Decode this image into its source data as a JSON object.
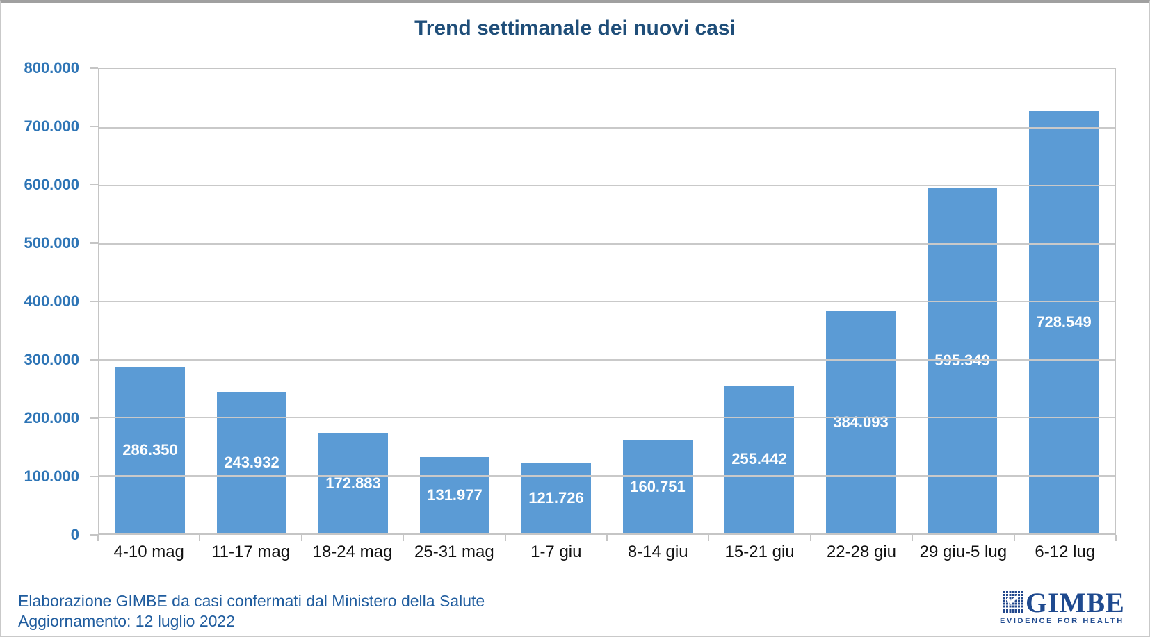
{
  "title": "Trend settimanale dei nuovi casi",
  "footer": {
    "line1": "Elaborazione GIMBE da casi confermati dal Ministero della Salute",
    "line2": "Aggiornamento: 12 luglio 2022"
  },
  "logo": {
    "name": "GIMBE",
    "tagline": "EVIDENCE FOR HEALTH",
    "color": "#1F4A8F"
  },
  "colors": {
    "bar": "#5B9BD5",
    "bar_label": "#FFFFFF",
    "title": "#1F4E79",
    "y_axis_label": "#2E75B6",
    "x_axis_label": "#111111",
    "gridline": "#C9C9C9",
    "plot_border": "#C5C5C5",
    "footer_text": "#1F5C9E"
  },
  "chart_data": {
    "type": "bar",
    "title": "Trend settimanale dei nuovi casi",
    "categories": [
      "4-10 mag",
      "11-17 mag",
      "18-24 mag",
      "25-31 mag",
      "1-7 giu",
      "8-14 giu",
      "15-21 giu",
      "22-28 giu",
      "29 giu-5 lug",
      "6-12 lug"
    ],
    "values": [
      286350,
      243932,
      172883,
      131977,
      121726,
      160751,
      255442,
      384093,
      595349,
      728549
    ],
    "bar_labels": [
      "286.350",
      "243.932",
      "172.883",
      "131.977",
      "121.726",
      "160.751",
      "255.442",
      "384.093",
      "595.349",
      "728.549"
    ],
    "y_tick_labels_top_down": [
      "800.000",
      "700.000",
      "600.000",
      "500.000",
      "400.000",
      "300.000",
      "200.000",
      "100.000",
      "0"
    ],
    "ylim": [
      0,
      800000
    ],
    "y_step": 100000,
    "xlabel": "",
    "ylabel": "",
    "grid": true,
    "legend": "none",
    "bar_color": "#5B9BD5",
    "value_label_position": "inside-center",
    "value_label_color": "#FFFFFF"
  }
}
